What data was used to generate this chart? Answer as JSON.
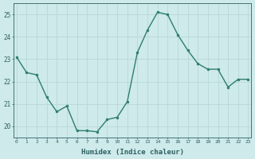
{
  "x": [
    0,
    1,
    2,
    3,
    4,
    5,
    6,
    7,
    8,
    9,
    10,
    11,
    12,
    13,
    14,
    15,
    16,
    17,
    18,
    19,
    20,
    21,
    22,
    23
  ],
  "y": [
    23.1,
    22.4,
    22.3,
    21.3,
    20.65,
    20.9,
    19.8,
    19.8,
    19.75,
    20.3,
    20.4,
    21.1,
    23.3,
    24.3,
    25.1,
    25.0,
    24.1,
    23.4,
    22.8,
    22.55,
    22.55,
    21.75,
    22.1,
    22.1
  ],
  "line_color": "#2e7d6e",
  "marker_color": "#2e7d6e",
  "bg_color": "#ceeaeb",
  "grid_color": "#b8d8d8",
  "axis_label_color": "#2e6060",
  "tick_color": "#2e6060",
  "xlabel": "Humidex (Indice chaleur)",
  "ylim": [
    19.5,
    25.5
  ],
  "yticks": [
    20,
    21,
    22,
    23,
    24,
    25
  ],
  "xticks": [
    0,
    1,
    2,
    3,
    4,
    5,
    6,
    7,
    8,
    9,
    10,
    11,
    12,
    13,
    14,
    15,
    16,
    17,
    18,
    19,
    20,
    21,
    22,
    23
  ],
  "xlim": [
    -0.3,
    23.3
  ],
  "linewidth": 1.0,
  "markersize": 2.0
}
